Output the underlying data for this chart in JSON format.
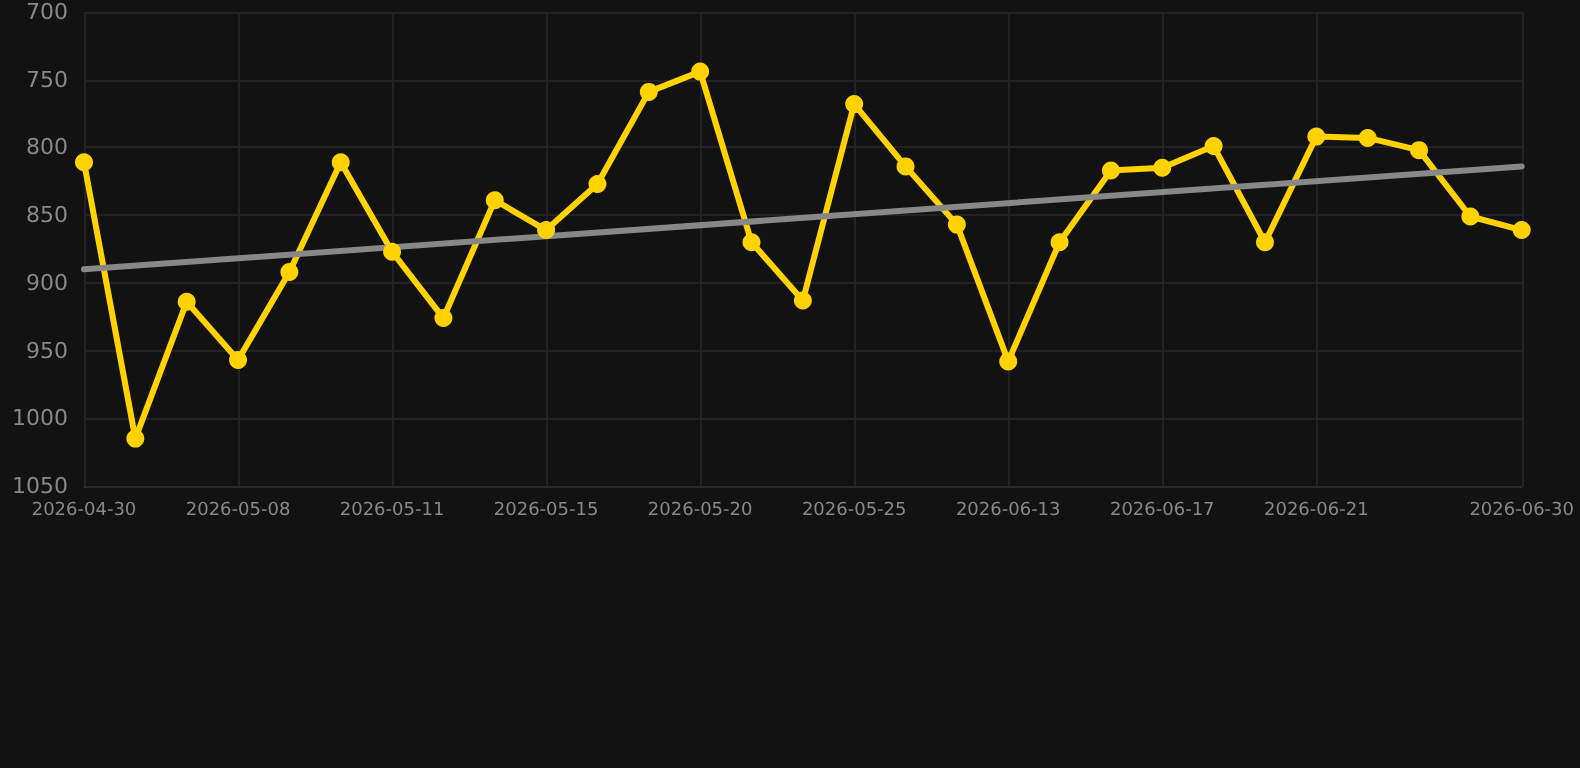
{
  "chart_data": {
    "type": "line",
    "categories": [
      "2026-04-30",
      null,
      null,
      "2026-05-08",
      null,
      null,
      "2026-05-11",
      null,
      null,
      "2026-05-15",
      null,
      null,
      "2026-05-20",
      null,
      null,
      "2026-05-25",
      null,
      null,
      "2026-06-13",
      null,
      null,
      "2026-06-17",
      null,
      null,
      "2026-06-21",
      null,
      null,
      null,
      "2026-06-30"
    ],
    "series": [
      {
        "color": "#ffd200",
        "values": [
          811,
          1015,
          914,
          957,
          892,
          811,
          877,
          926,
          839,
          861,
          827,
          759,
          744,
          870,
          913,
          768,
          814,
          857,
          958,
          870,
          817,
          815,
          799,
          870,
          792,
          793,
          802,
          851,
          861
        ]
      },
      {
        "type": "line",
        "color": "#888888",
        "marker": "none",
        "values": [
          890,
          null,
          null,
          null,
          null,
          null,
          null,
          null,
          null,
          null,
          null,
          null,
          null,
          null,
          null,
          null,
          null,
          null,
          null,
          null,
          null,
          null,
          null,
          null,
          null,
          null,
          null,
          null,
          814
        ]
      }
    ],
    "ylim": [
      1050,
      700
    ],
    "yticks": [
      700,
      750,
      800,
      850,
      900,
      950,
      {
        "value": 1000,
        "label": "1000"
      },
      {
        "value": 1050,
        "label": "1050"
      }
    ],
    "grid": true,
    "marker": "circle",
    "line_style": "solid"
  }
}
